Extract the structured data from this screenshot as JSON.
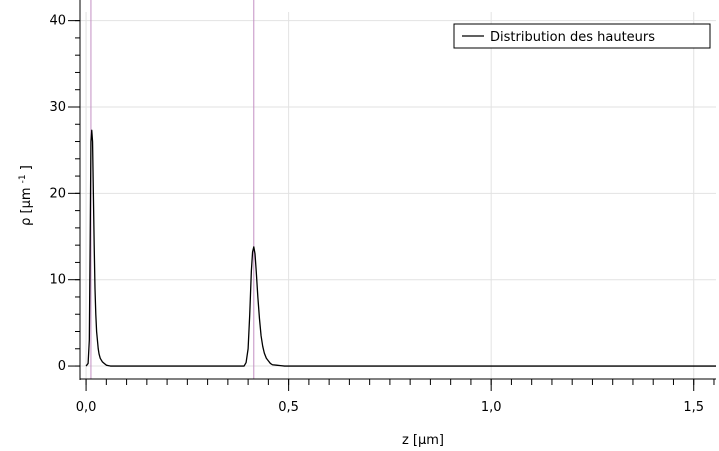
{
  "chart_data": {
    "type": "line",
    "title": "",
    "xlabel": "z [µm]",
    "ylabel_main": "ρ [µm",
    "ylabel_sup": "-1",
    "ylabel_close": "]",
    "xlim": [
      -0.015,
      1.555
    ],
    "ylim": [
      -1.5,
      41
    ],
    "xticks": [
      0.0,
      0.5,
      1.0,
      1.5
    ],
    "xtick_labels": [
      "0,0",
      "0,5",
      "1,0",
      "1,5"
    ],
    "yticks": [
      0,
      10,
      20,
      30,
      40
    ],
    "ytick_labels": [
      "0",
      "10",
      "20",
      "30",
      "40"
    ],
    "x_minor_step": 0.05,
    "y_minor_step": 2,
    "grid": true,
    "legend_position": "top-right",
    "series": [
      {
        "name": "Distribution des hauteurs",
        "color": "#000000",
        "x": [
          0.0,
          0.005,
          0.008,
          0.01,
          0.012,
          0.014,
          0.016,
          0.018,
          0.02,
          0.022,
          0.024,
          0.026,
          0.028,
          0.03,
          0.032,
          0.035,
          0.04,
          0.045,
          0.05,
          0.055,
          0.06,
          0.39,
          0.395,
          0.4,
          0.404,
          0.408,
          0.411,
          0.414,
          0.417,
          0.42,
          0.424,
          0.428,
          0.432,
          0.436,
          0.44,
          0.445,
          0.45,
          0.455,
          0.46,
          0.47,
          0.48,
          0.49,
          0.5,
          1.555
        ],
        "y": [
          0,
          0.3,
          3,
          14,
          26,
          27.3,
          26,
          20,
          14,
          9,
          6,
          4,
          3,
          2,
          1.4,
          0.9,
          0.5,
          0.3,
          0.1,
          0.05,
          0,
          0,
          0.4,
          2,
          6,
          11,
          13.2,
          13.8,
          13,
          11,
          8,
          5.5,
          3.5,
          2.3,
          1.5,
          0.9,
          0.6,
          0.3,
          0.15,
          0.1,
          0.05,
          0,
          0,
          0
        ]
      }
    ],
    "vertical_markers": [
      {
        "x": 0.012,
        "color": "#c38fc3"
      },
      {
        "x": 0.414,
        "color": "#c38fc3"
      }
    ],
    "gridline_color": "#e2e2e2",
    "axis_color": "#000000"
  }
}
